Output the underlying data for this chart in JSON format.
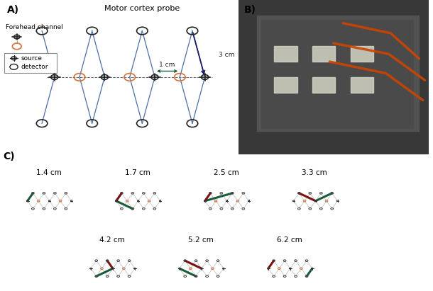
{
  "title_A": "A)",
  "title_B": "B)",
  "title_C": "C)",
  "probe_title": "Motor cortex probe",
  "forehead_label": "Forehead channel",
  "legend_source": "source",
  "legend_detector": "detector",
  "annotation_1cm": "1 cm",
  "annotation_3cm": "3 cm",
  "blue_color": "#4a6fa5",
  "orange_color": "#d4703a",
  "dark_green": "#1a5c3a",
  "dark_red": "#7a1010",
  "bg_color": "#ffffff",
  "panel_C_labels": [
    "1.4 cm",
    "1.7 cm",
    "2.5 cm",
    "3.3 cm",
    "4.2 cm",
    "5.2 cm",
    "6.2 cm"
  ]
}
